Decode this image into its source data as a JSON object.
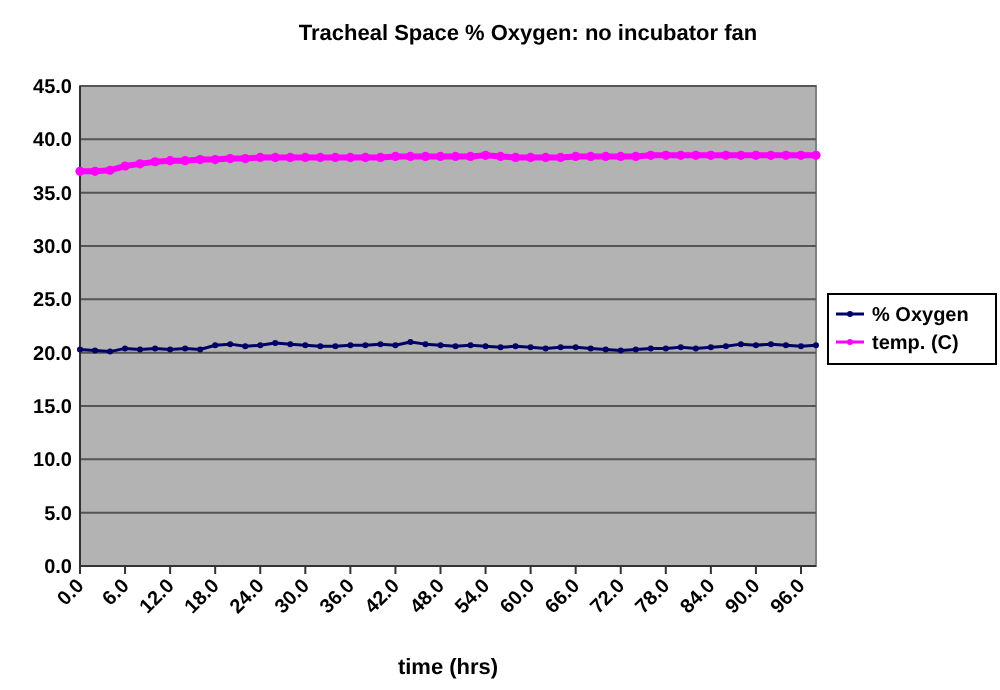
{
  "chart_data": {
    "type": "line",
    "title": "Tracheal Space % Oxygen: no incubator fan",
    "xlabel": "time (hrs)",
    "x": [
      0,
      2,
      4,
      6,
      8,
      10,
      12,
      14,
      16,
      18,
      20,
      22,
      24,
      26,
      28,
      30,
      32,
      34,
      36,
      38,
      40,
      42,
      44,
      46,
      48,
      50,
      52,
      54,
      56,
      58,
      60,
      62,
      64,
      66,
      68,
      70,
      72,
      74,
      76,
      78,
      80,
      82,
      84,
      86,
      88,
      90,
      92,
      94,
      96,
      98
    ],
    "series": [
      {
        "name": "% Oxygen",
        "color": "#000066",
        "values": [
          20.3,
          20.2,
          20.1,
          20.4,
          20.3,
          20.4,
          20.3,
          20.4,
          20.3,
          20.7,
          20.8,
          20.6,
          20.7,
          20.9,
          20.8,
          20.7,
          20.6,
          20.6,
          20.7,
          20.7,
          20.8,
          20.7,
          21.0,
          20.8,
          20.7,
          20.6,
          20.7,
          20.6,
          20.5,
          20.6,
          20.5,
          20.4,
          20.5,
          20.5,
          20.4,
          20.3,
          20.2,
          20.3,
          20.4,
          20.4,
          20.5,
          20.4,
          20.5,
          20.6,
          20.8,
          20.7,
          20.8,
          20.7,
          20.6,
          20.7
        ]
      },
      {
        "name": "temp. (C)",
        "color": "#ff00ff",
        "values": [
          37.0,
          37.0,
          37.1,
          37.5,
          37.7,
          37.9,
          38.0,
          38.0,
          38.1,
          38.1,
          38.2,
          38.2,
          38.3,
          38.3,
          38.3,
          38.3,
          38.3,
          38.3,
          38.3,
          38.3,
          38.3,
          38.4,
          38.4,
          38.4,
          38.4,
          38.4,
          38.4,
          38.5,
          38.4,
          38.3,
          38.3,
          38.3,
          38.3,
          38.4,
          38.4,
          38.4,
          38.4,
          38.4,
          38.5,
          38.5,
          38.5,
          38.5,
          38.5,
          38.5,
          38.5,
          38.5,
          38.5,
          38.5,
          38.5,
          38.5
        ]
      }
    ],
    "xlim": [
      0,
      98
    ],
    "xticks": [
      {
        "value": 0,
        "label": "0.0"
      },
      {
        "value": 6,
        "label": "6.0"
      },
      {
        "value": 12,
        "label": "12.0"
      },
      {
        "value": 18,
        "label": "18.0"
      },
      {
        "value": 24,
        "label": "24.0"
      },
      {
        "value": 30,
        "label": "30.0"
      },
      {
        "value": 36,
        "label": "36.0"
      },
      {
        "value": 42,
        "label": "42.0"
      },
      {
        "value": 48,
        "label": "48.0"
      },
      {
        "value": 54,
        "label": "54.0"
      },
      {
        "value": 60,
        "label": "60.0"
      },
      {
        "value": 66,
        "label": "66.0"
      },
      {
        "value": 72,
        "label": "72.0"
      },
      {
        "value": 78,
        "label": "78.0"
      },
      {
        "value": 84,
        "label": "84.0"
      },
      {
        "value": 90,
        "label": "90.0"
      },
      {
        "value": 96,
        "label": "96.0"
      }
    ],
    "ylim": [
      0,
      45
    ],
    "yticks": [
      {
        "value": 0,
        "label": "0.0"
      },
      {
        "value": 5,
        "label": "5.0"
      },
      {
        "value": 10,
        "label": "10.0"
      },
      {
        "value": 15,
        "label": "15.0"
      },
      {
        "value": 20,
        "label": "20.0"
      },
      {
        "value": 25,
        "label": "25.0"
      },
      {
        "value": 30,
        "label": "30.0"
      },
      {
        "value": 35,
        "label": "35.0"
      },
      {
        "value": 40,
        "label": "40.0"
      },
      {
        "value": 45,
        "label": "45.0"
      }
    ],
    "grid": "y",
    "legend": "right",
    "marker": "circle",
    "line_style": "solid"
  }
}
